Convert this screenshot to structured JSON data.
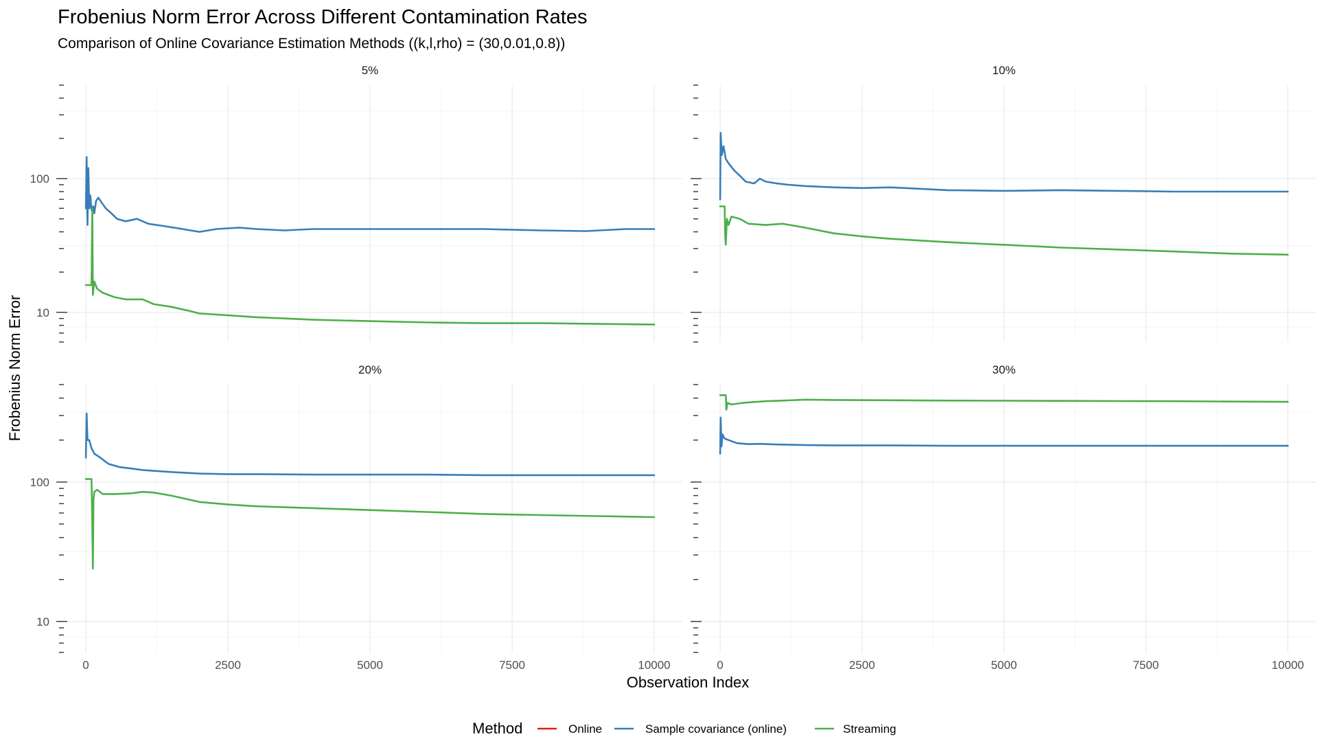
{
  "chart_data": {
    "type": "line",
    "title": "Frobenius Norm Error Across Different Contamination Rates",
    "subtitle": "Comparison of Online Covariance Estimation Methods ((k,l,rho) = (30,0.01,0.8))",
    "xlabel": "Observation Index",
    "ylabel": "Frobenius Norm Error",
    "y_scale": "log",
    "xlim": [
      0,
      10000
    ],
    "ylim": [
      6,
      500
    ],
    "x_ticks": [
      0,
      2500,
      5000,
      7500,
      10000
    ],
    "y_ticks": [
      10,
      100
    ],
    "grid": true,
    "legend": {
      "title": "Method",
      "placement": "bottom",
      "entries": [
        {
          "name": "Online",
          "color": "#e41a1c"
        },
        {
          "name": "Sample covariance (online)",
          "color": "#377eb8"
        },
        {
          "name": "Streaming",
          "color": "#4daf4a"
        }
      ]
    },
    "panels": [
      {
        "label": "5%",
        "series": [
          {
            "name": "Online",
            "color": "#e41a1c",
            "points": []
          },
          {
            "name": "Sample covariance (online)",
            "color": "#377eb8",
            "points": [
              [
                1,
                60
              ],
              [
                15,
                145
              ],
              [
                30,
                45
              ],
              [
                45,
                120
              ],
              [
                60,
                60
              ],
              [
                80,
                75
              ],
              [
                100,
                58
              ],
              [
                130,
                62
              ],
              [
                150,
                55
              ],
              [
                180,
                68
              ],
              [
                220,
                72
              ],
              [
                280,
                66
              ],
              [
                350,
                60
              ],
              [
                450,
                55
              ],
              [
                550,
                50
              ],
              [
                700,
                48
              ],
              [
                900,
                50
              ],
              [
                1100,
                46
              ],
              [
                1400,
                44
              ],
              [
                1700,
                42
              ],
              [
                2000,
                40
              ],
              [
                2300,
                42
              ],
              [
                2700,
                43
              ],
              [
                3000,
                42
              ],
              [
                3500,
                41
              ],
              [
                4000,
                42
              ],
              [
                5000,
                42
              ],
              [
                6000,
                42
              ],
              [
                7000,
                42
              ],
              [
                8000,
                41
              ],
              [
                8800,
                40.5
              ],
              [
                9500,
                42
              ],
              [
                10000,
                42
              ]
            ]
          },
          {
            "name": "Streaming",
            "color": "#4daf4a",
            "points": [
              [
                1,
                16
              ],
              [
                100,
                16
              ],
              [
                115,
                60
              ],
              [
                125,
                13.5
              ],
              [
                150,
                17
              ],
              [
                200,
                15
              ],
              [
                300,
                14
              ],
              [
                500,
                13
              ],
              [
                700,
                12.5
              ],
              [
                1000,
                12.5
              ],
              [
                1200,
                11.5
              ],
              [
                1500,
                11
              ],
              [
                1800,
                10.3
              ],
              [
                2000,
                9.8
              ],
              [
                2500,
                9.5
              ],
              [
                3000,
                9.2
              ],
              [
                3500,
                9
              ],
              [
                4000,
                8.8
              ],
              [
                5000,
                8.6
              ],
              [
                6000,
                8.4
              ],
              [
                7000,
                8.3
              ],
              [
                8000,
                8.3
              ],
              [
                9000,
                8.2
              ],
              [
                10000,
                8.1
              ]
            ]
          }
        ]
      },
      {
        "label": "10%",
        "series": [
          {
            "name": "Online",
            "color": "#e41a1c",
            "points": []
          },
          {
            "name": "Sample covariance (online)",
            "color": "#377eb8",
            "points": [
              [
                1,
                70
              ],
              [
                10,
                220
              ],
              [
                30,
                150
              ],
              [
                60,
                175
              ],
              [
                100,
                140
              ],
              [
                150,
                130
              ],
              [
                250,
                115
              ],
              [
                350,
                105
              ],
              [
                450,
                95
              ],
              [
                600,
                92
              ],
              [
                700,
                100
              ],
              [
                800,
                95
              ],
              [
                1000,
                92
              ],
              [
                1200,
                90
              ],
              [
                1500,
                88
              ],
              [
                2000,
                86
              ],
              [
                2500,
                85
              ],
              [
                3000,
                86
              ],
              [
                3500,
                84
              ],
              [
                4000,
                82
              ],
              [
                5000,
                81
              ],
              [
                6000,
                82
              ],
              [
                7000,
                81
              ],
              [
                8000,
                80
              ],
              [
                9000,
                80
              ],
              [
                10000,
                80
              ]
            ]
          },
          {
            "name": "Streaming",
            "color": "#4daf4a",
            "points": [
              [
                1,
                62
              ],
              [
                80,
                62
              ],
              [
                90,
                38
              ],
              [
                100,
                32
              ],
              [
                120,
                50
              ],
              [
                150,
                45
              ],
              [
                200,
                52
              ],
              [
                350,
                50
              ],
              [
                500,
                46
              ],
              [
                800,
                45
              ],
              [
                1100,
                46
              ],
              [
                1500,
                43
              ],
              [
                2000,
                39
              ],
              [
                2500,
                37
              ],
              [
                3000,
                35.5
              ],
              [
                4000,
                33.5
              ],
              [
                5000,
                32
              ],
              [
                6000,
                30.5
              ],
              [
                7000,
                29.5
              ],
              [
                8000,
                28.5
              ],
              [
                9000,
                27.5
              ],
              [
                10000,
                27
              ]
            ]
          }
        ]
      },
      {
        "label": "20%",
        "series": [
          {
            "name": "Online",
            "color": "#e41a1c",
            "points": []
          },
          {
            "name": "Sample covariance (online)",
            "color": "#377eb8",
            "points": [
              [
                1,
                150
              ],
              [
                15,
                310
              ],
              [
                30,
                200
              ],
              [
                60,
                200
              ],
              [
                100,
                175
              ],
              [
                150,
                160
              ],
              [
                250,
                150
              ],
              [
                400,
                135
              ],
              [
                600,
                128
              ],
              [
                800,
                125
              ],
              [
                1000,
                122
              ],
              [
                1500,
                118
              ],
              [
                2000,
                115
              ],
              [
                2500,
                114
              ],
              [
                3000,
                114
              ],
              [
                4000,
                113
              ],
              [
                5000,
                113
              ],
              [
                6000,
                113
              ],
              [
                7000,
                112
              ],
              [
                8000,
                112
              ],
              [
                9000,
                112
              ],
              [
                10000,
                112
              ]
            ]
          },
          {
            "name": "Streaming",
            "color": "#4daf4a",
            "points": [
              [
                1,
                105
              ],
              [
                100,
                105
              ],
              [
                110,
                65
              ],
              [
                125,
                24
              ],
              [
                135,
                75
              ],
              [
                150,
                85
              ],
              [
                200,
                88
              ],
              [
                300,
                82
              ],
              [
                500,
                82
              ],
              [
                800,
                83
              ],
              [
                1000,
                85
              ],
              [
                1200,
                84
              ],
              [
                1500,
                80
              ],
              [
                2000,
                72
              ],
              [
                2500,
                69
              ],
              [
                3000,
                67
              ],
              [
                4000,
                65
              ],
              [
                5000,
                63
              ],
              [
                6000,
                61
              ],
              [
                7000,
                59
              ],
              [
                8000,
                58
              ],
              [
                9000,
                57
              ],
              [
                10000,
                56
              ]
            ]
          }
        ]
      },
      {
        "label": "30%",
        "series": [
          {
            "name": "Online",
            "color": "#e41a1c",
            "points": []
          },
          {
            "name": "Sample covariance (online)",
            "color": "#377eb8",
            "points": [
              [
                1,
                160
              ],
              [
                10,
                290
              ],
              [
                25,
                180
              ],
              [
                40,
                220
              ],
              [
                80,
                205
              ],
              [
                150,
                200
              ],
              [
                300,
                190
              ],
              [
                500,
                187
              ],
              [
                700,
                188
              ],
              [
                1000,
                186
              ],
              [
                1500,
                184
              ],
              [
                2000,
                183
              ],
              [
                3000,
                183
              ],
              [
                4000,
                182
              ],
              [
                5000,
                182
              ],
              [
                6000,
                182
              ],
              [
                7000,
                182
              ],
              [
                8000,
                182
              ],
              [
                9000,
                182
              ],
              [
                10000,
                182
              ]
            ]
          },
          {
            "name": "Streaming",
            "color": "#4daf4a",
            "points": [
              [
                1,
                420
              ],
              [
                100,
                420
              ],
              [
                110,
                330
              ],
              [
                130,
                370
              ],
              [
                200,
                360
              ],
              [
                400,
                370
              ],
              [
                800,
                380
              ],
              [
                1200,
                385
              ],
              [
                1500,
                390
              ],
              [
                2000,
                388
              ],
              [
                3000,
                386
              ],
              [
                4000,
                384
              ],
              [
                5000,
                383
              ],
              [
                6000,
                382
              ],
              [
                7000,
                381
              ],
              [
                8000,
                380
              ],
              [
                9000,
                378
              ],
              [
                10000,
                376
              ]
            ]
          }
        ]
      }
    ]
  }
}
